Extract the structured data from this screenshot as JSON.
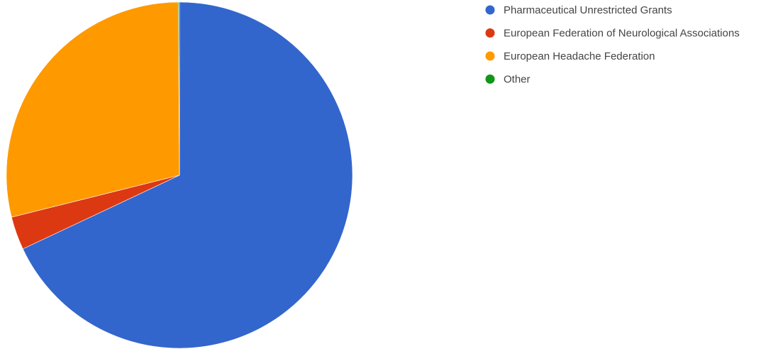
{
  "chart_data": {
    "type": "pie",
    "title": "",
    "slices": [
      {
        "label": "Pharmaceutical Unrestricted Grants",
        "value": 68.0,
        "color": "#3366cc"
      },
      {
        "label": "European Federation of Neurological Associations",
        "value": 3.1,
        "color": "#dc3912"
      },
      {
        "label": "European Headache Federation",
        "value": 28.8,
        "color": "#ff9900"
      },
      {
        "label": "Other",
        "value": 0.1,
        "color": "#109618"
      }
    ],
    "start_angle_deg": 0,
    "direction": "clockwise",
    "legend": {
      "position": "right"
    }
  }
}
